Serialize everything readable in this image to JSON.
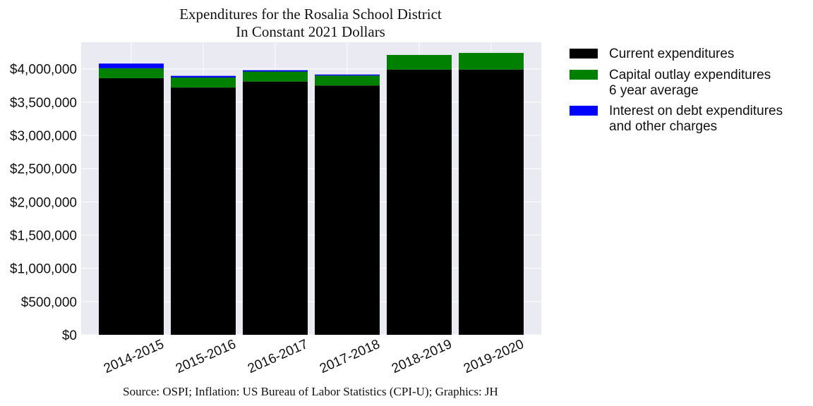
{
  "chart_data": {
    "type": "bar",
    "stacked": true,
    "title": "Expenditures for the Rosalia School District",
    "subtitle": "In Constant 2021 Dollars",
    "source": "Source: OSPI; Inflation: US Bureau of Labor Statistics (CPI-U); Graphics: JH",
    "categories": [
      "2014-2015",
      "2015-2016",
      "2016-2017",
      "2017-2018",
      "2018-2019",
      "2019-2020"
    ],
    "series": [
      {
        "name": "Current expenditures",
        "color": "#000000",
        "values": [
          3860000,
          3720000,
          3810000,
          3750000,
          3990000,
          3990000
        ]
      },
      {
        "name": "Capital outlay expenditures\n6 year average",
        "color": "#008000",
        "values": [
          150000,
          150000,
          150000,
          150000,
          220000,
          250000
        ]
      },
      {
        "name": "Interest on debt expenditures\nand other charges",
        "color": "#0000ff",
        "values": [
          70000,
          25000,
          20000,
          15000,
          0,
          0
        ]
      }
    ],
    "ylim": [
      0,
      4400000
    ],
    "yticks": [
      0,
      500000,
      1000000,
      1500000,
      2000000,
      2500000,
      3000000,
      3500000,
      4000000
    ],
    "ytick_labels": [
      "$0",
      "$500,000",
      "$1,000,000",
      "$1,500,000",
      "$2,000,000",
      "$2,500,000",
      "$3,000,000",
      "$3,500,000",
      "$4,000,000"
    ],
    "xlabel": "",
    "ylabel": "",
    "grid": true,
    "legend_position": "right-outside-top",
    "background_color": "#eaeaf2"
  }
}
